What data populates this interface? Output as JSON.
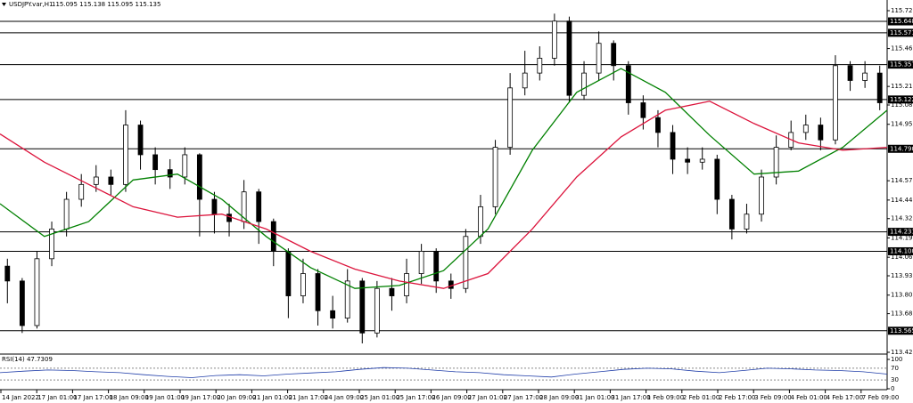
{
  "chart_data": {
    "type": "candlestick",
    "title": "USDJPY.var,H1",
    "subtitle": "115.095 115.138 115.095 115.135",
    "ylim": [
      113.42,
      115.72
    ],
    "yticks": [
      {
        "value": 115.72,
        "label": "115.720"
      },
      115.465,
      {
        "value": 115.21,
        "label": "115.210"
      },
      115.085,
      114.955,
      114.575,
      114.445,
      {
        "value": 114.32,
        "label": "114.320"
      },
      {
        "value": 114.19,
        "label": "114.190"
      },
      {
        "value": 114.06,
        "label": "114.060"
      },
      113.935,
      113.805,
      {
        "value": 113.68,
        "label": "113.680"
      },
      {
        "value": 113.42,
        "label": "113.420"
      }
    ],
    "levels": [
      115.648,
      115.571,
      115.357,
      115.122,
      {
        "value": 114.79,
        "label": "114.790"
      },
      114.231,
      {
        "value": 114.1,
        "label": "114.100"
      },
      113.565
    ],
    "xticks": [
      "14 Jan 2022",
      "17 Jan 01:00",
      "17 Jan 17:00",
      "18 Jan 09:00",
      "19 Jan 01:00",
      "19 Jan 17:00",
      "20 Jan 09:00",
      "21 Jan 01:00",
      "21 Jan 17:00",
      "24 Jan 09:00",
      "25 Jan 01:00",
      "25 Jan 17:00",
      "26 Jan 09:00",
      "27 Jan 01:00",
      "27 Jan 17:00",
      "28 Jan 09:00",
      "31 Jan 01:00",
      "31 Jan 17:00",
      "1 Feb 09:00",
      "2 Feb 01:00",
      "2 Feb 17:00",
      "3 Feb 09:00",
      "4 Feb 01:00",
      "4 Feb 17:00",
      "7 Feb 09:00"
    ],
    "ohlc": [
      [
        114.0,
        114.05,
        113.75,
        113.9
      ],
      [
        113.9,
        113.92,
        113.55,
        113.6
      ],
      [
        113.6,
        114.1,
        113.58,
        114.05
      ],
      [
        114.05,
        114.3,
        114.0,
        114.25
      ],
      [
        114.25,
        114.5,
        114.2,
        114.45
      ],
      [
        114.45,
        114.62,
        114.4,
        114.55
      ],
      [
        114.55,
        114.68,
        114.5,
        114.6
      ],
      [
        114.6,
        114.65,
        114.48,
        114.55
      ],
      [
        114.55,
        115.05,
        114.5,
        114.95
      ],
      [
        114.95,
        114.98,
        114.65,
        114.75
      ],
      [
        114.75,
        114.8,
        114.55,
        114.65
      ],
      [
        114.65,
        114.72,
        114.52,
        114.6
      ],
      [
        114.6,
        114.8,
        114.55,
        114.75
      ],
      [
        114.75,
        114.76,
        114.2,
        114.45
      ],
      [
        114.45,
        114.5,
        114.22,
        114.35
      ],
      [
        114.35,
        114.42,
        114.2,
        114.3
      ],
      [
        114.3,
        114.58,
        114.25,
        114.5
      ],
      [
        114.5,
        114.52,
        114.15,
        114.3
      ],
      [
        114.3,
        114.32,
        114.0,
        114.1
      ],
      [
        114.1,
        114.12,
        113.65,
        113.8
      ],
      [
        113.8,
        114.05,
        113.75,
        113.95
      ],
      [
        113.95,
        113.98,
        113.6,
        113.7
      ],
      [
        113.7,
        113.8,
        113.58,
        113.65
      ],
      [
        113.65,
        113.98,
        113.62,
        113.9
      ],
      [
        113.9,
        113.92,
        113.48,
        113.55
      ],
      [
        113.55,
        113.9,
        113.52,
        113.85
      ],
      [
        113.85,
        113.92,
        113.7,
        113.8
      ],
      [
        113.8,
        114.05,
        113.75,
        113.95
      ],
      [
        113.95,
        114.15,
        113.88,
        114.1
      ],
      [
        114.1,
        114.12,
        113.82,
        113.9
      ],
      [
        113.9,
        113.95,
        113.78,
        113.85
      ],
      [
        113.85,
        114.25,
        113.82,
        114.2
      ],
      [
        114.2,
        114.48,
        114.15,
        114.4
      ],
      [
        114.4,
        114.85,
        114.35,
        114.8
      ],
      [
        114.8,
        115.3,
        114.75,
        115.2
      ],
      [
        115.2,
        115.45,
        115.15,
        115.3
      ],
      [
        115.3,
        115.48,
        115.25,
        115.4
      ],
      [
        115.4,
        115.7,
        115.35,
        115.65
      ],
      [
        115.65,
        115.68,
        115.1,
        115.15
      ],
      [
        115.15,
        115.38,
        115.12,
        115.3
      ],
      [
        115.3,
        115.58,
        115.25,
        115.5
      ],
      [
        115.5,
        115.52,
        115.25,
        115.35
      ],
      [
        115.35,
        115.38,
        115.02,
        115.1
      ],
      [
        115.1,
        115.15,
        114.92,
        115.0
      ],
      [
        115.0,
        115.05,
        114.8,
        114.9
      ],
      [
        114.9,
        114.95,
        114.62,
        114.72
      ],
      [
        114.72,
        114.8,
        114.62,
        114.7
      ],
      [
        114.7,
        114.8,
        114.65,
        114.72
      ],
      [
        114.72,
        114.75,
        114.35,
        114.45
      ],
      [
        114.45,
        114.48,
        114.18,
        114.25
      ],
      [
        114.25,
        114.42,
        114.22,
        114.35
      ],
      [
        114.35,
        114.65,
        114.3,
        114.6
      ],
      [
        114.6,
        114.88,
        114.55,
        114.8
      ],
      [
        114.8,
        114.98,
        114.78,
        114.9
      ],
      [
        114.9,
        115.02,
        114.85,
        114.95
      ],
      [
        114.95,
        115.0,
        114.78,
        114.85
      ],
      [
        114.85,
        115.42,
        114.82,
        115.35
      ],
      [
        115.35,
        115.38,
        115.18,
        115.25
      ],
      [
        115.25,
        115.38,
        115.2,
        115.3
      ],
      [
        115.3,
        115.35,
        115.05,
        115.1
      ]
    ],
    "series": [
      {
        "color": "#008000",
        "values": [
          114.42,
          114.2,
          114.3,
          114.58,
          114.62,
          114.45,
          114.2,
          113.99,
          113.85,
          113.87,
          113.97,
          114.25,
          114.78,
          115.17,
          115.33,
          115.17,
          114.88,
          114.62,
          114.64,
          114.8,
          115.05
        ]
      },
      {
        "color": "#dc143c",
        "values": [
          114.89,
          114.7,
          114.55,
          114.4,
          114.33,
          114.35,
          114.25,
          114.1,
          113.98,
          113.9,
          113.85,
          113.95,
          114.25,
          114.6,
          114.87,
          115.05,
          115.11,
          114.96,
          114.83,
          114.78,
          114.8
        ]
      }
    ],
    "rsi": {
      "title": "RSI(14) 47.7309",
      "color": "#1e3ca8",
      "ylim": [
        0,
        100
      ],
      "yticks": [
        100,
        70,
        30,
        0
      ],
      "values": [
        55,
        60,
        64,
        62,
        58,
        55,
        48,
        42,
        38,
        45,
        48,
        44,
        50,
        54,
        58,
        66,
        72,
        70,
        64,
        58,
        55,
        48,
        44,
        40,
        50,
        58,
        66,
        70,
        68,
        60,
        55,
        62,
        70,
        68,
        64,
        62,
        58,
        50
      ]
    }
  }
}
